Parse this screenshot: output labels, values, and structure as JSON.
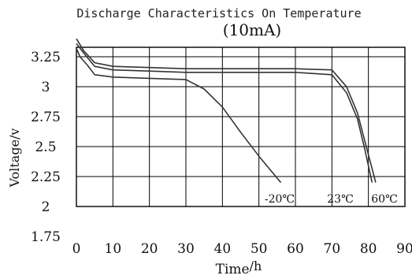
{
  "chart_data": {
    "type": "line",
    "title": "Discharge Characteristics On  Temperature",
    "subtitle": "(10mA)",
    "xlabel": "Time",
    "xlabel_unit": "/h",
    "ylabel": "Voltage/v",
    "xlim": [
      0,
      90
    ],
    "ylim": [
      1.75,
      3.4
    ],
    "x_ticks": [
      0,
      10,
      20,
      30,
      40,
      50,
      60,
      70,
      80,
      90
    ],
    "x_tick_labels": [
      "0",
      "10",
      "20",
      "30",
      "40",
      "50",
      "60",
      "70",
      "80",
      "90"
    ],
    "y_ticks": [
      3.25,
      3,
      2.75,
      2.5,
      2.25,
      2,
      1.75
    ],
    "y_tick_labels": [
      "3.25",
      "3",
      "2.75",
      "2.5",
      "2.25",
      "2",
      "1.75"
    ],
    "grid": true,
    "series": [
      {
        "name": "-20℃",
        "x": [
          0,
          1,
          3,
          5,
          10,
          20,
          30,
          35,
          40,
          45,
          50,
          56
        ],
        "y": [
          3.32,
          3.25,
          3.18,
          3.1,
          3.08,
          3.07,
          3.06,
          2.98,
          2.83,
          2.62,
          2.42,
          2.2
        ]
      },
      {
        "name": "23℃",
        "x": [
          0,
          2,
          5,
          10,
          20,
          30,
          40,
          50,
          60,
          70,
          74,
          77,
          79,
          81
        ],
        "y": [
          3.36,
          3.28,
          3.17,
          3.14,
          3.13,
          3.12,
          3.12,
          3.12,
          3.12,
          3.1,
          2.95,
          2.73,
          2.48,
          2.2
        ]
      },
      {
        "name": "60℃",
        "x": [
          0,
          2,
          5,
          10,
          20,
          30,
          40,
          50,
          60,
          70,
          74,
          77,
          79,
          82
        ],
        "y": [
          3.4,
          3.3,
          3.2,
          3.17,
          3.16,
          3.15,
          3.15,
          3.15,
          3.15,
          3.14,
          3.0,
          2.78,
          2.55,
          2.2
        ]
      }
    ],
    "series_labels_on_chart": [
      "-20℃",
      "23℃",
      "60℃"
    ],
    "colors": {
      "line": "#333333",
      "grid": "#000000",
      "background": "#ffffff"
    }
  }
}
